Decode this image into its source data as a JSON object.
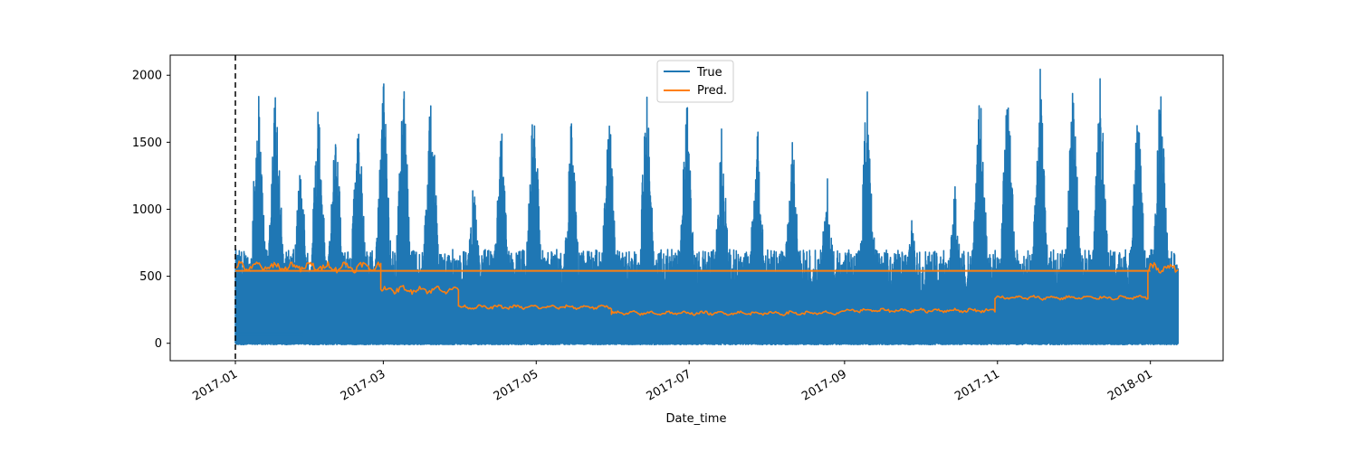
{
  "chart_data": {
    "type": "line",
    "title": "",
    "xlabel": "Date_time",
    "ylabel": "",
    "x_ticks": [
      "2017-01",
      "2017-03",
      "2017-05",
      "2017-07",
      "2017-09",
      "2017-11",
      "2018-01"
    ],
    "y_ticks": [
      0,
      500,
      1000,
      1500,
      2000
    ],
    "xlim": [
      "2016-12-06",
      "2018-01-30"
    ],
    "ylim": [
      -130,
      2150
    ],
    "legend_placement": "top-center",
    "vline": {
      "x": "2017-01-01",
      "style": "dashed",
      "color": "#000000"
    },
    "series": [
      {
        "name": "True",
        "color": "#1f77b4",
        "x_range": [
          "2017-01-01",
          "2018-01-12"
        ],
        "description": "high-frequency signal between 0 and about 2050",
        "envelope_peaks": [
          {
            "x": "2017-01-10",
            "y": 1990
          },
          {
            "x": "2017-01-17",
            "y": 2050
          },
          {
            "x": "2017-01-27",
            "y": 1430
          },
          {
            "x": "2017-02-03",
            "y": 1900
          },
          {
            "x": "2017-02-10",
            "y": 1740
          },
          {
            "x": "2017-02-19",
            "y": 1870
          },
          {
            "x": "2017-03-01",
            "y": 2040
          },
          {
            "x": "2017-03-09",
            "y": 2030
          },
          {
            "x": "2017-03-20",
            "y": 2030
          },
          {
            "x": "2017-04-06",
            "y": 1260
          },
          {
            "x": "2017-04-17",
            "y": 1670
          },
          {
            "x": "2017-04-30",
            "y": 1960
          },
          {
            "x": "2017-05-15",
            "y": 1740
          },
          {
            "x": "2017-05-30",
            "y": 1810
          },
          {
            "x": "2017-06-14",
            "y": 1970
          },
          {
            "x": "2017-06-30",
            "y": 1910
          },
          {
            "x": "2017-07-14",
            "y": 1680
          },
          {
            "x": "2017-07-28",
            "y": 1750
          },
          {
            "x": "2017-08-11",
            "y": 1650
          },
          {
            "x": "2017-08-25",
            "y": 1330
          },
          {
            "x": "2017-09-10",
            "y": 2050
          },
          {
            "x": "2017-09-28",
            "y": 1040
          },
          {
            "x": "2017-10-15",
            "y": 1260
          },
          {
            "x": "2017-10-25",
            "y": 1990
          },
          {
            "x": "2017-11-05",
            "y": 2030
          },
          {
            "x": "2017-11-18",
            "y": 2050
          },
          {
            "x": "2017-12-01",
            "y": 2040
          },
          {
            "x": "2017-12-12",
            "y": 2050
          },
          {
            "x": "2017-12-27",
            "y": 1860
          },
          {
            "x": "2018-01-05",
            "y": 2050
          }
        ]
      },
      {
        "name": "Pred.",
        "color": "#ff7f0e",
        "x_range": [
          "2017-01-01",
          "2018-01-12"
        ],
        "levels": [
          {
            "from": "2017-01-01",
            "to": "2017-02-28",
            "y": 570
          },
          {
            "from": "2017-02-28",
            "to": "2017-03-31",
            "y": 400
          },
          {
            "from": "2017-03-31",
            "to": "2017-05-31",
            "y": 270
          },
          {
            "from": "2017-05-31",
            "to": "2017-09-01",
            "y": 225
          },
          {
            "from": "2017-09-01",
            "to": "2017-10-31",
            "y": 245
          },
          {
            "from": "2017-10-31",
            "to": "2017-12-31",
            "y": 340
          },
          {
            "from": "2017-12-31",
            "to": "2018-01-12",
            "y": 560
          }
        ],
        "constant_line": {
          "from": "2017-01-01",
          "to": "2018-01-01",
          "y": 540
        }
      }
    ]
  }
}
